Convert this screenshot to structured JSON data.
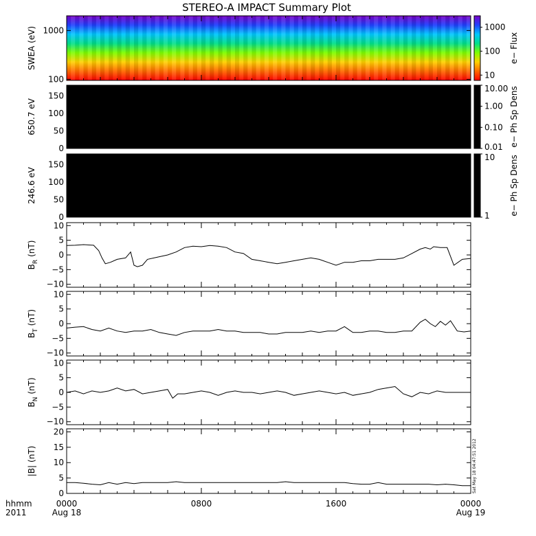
{
  "title": "STEREO-A IMPACT Summary Plot",
  "stamp": "Sat May 18 04:47:51 2012",
  "time_axis": {
    "corner_labels": [
      "hhmm",
      "2011"
    ],
    "ticks": [
      {
        "label": "0000",
        "sublabel": "Aug 18",
        "t": 0
      },
      {
        "label": "0800",
        "sublabel": "",
        "t": 8
      },
      {
        "label": "1600",
        "sublabel": "",
        "t": 16
      },
      {
        "label": "0000",
        "sublabel": "Aug 19",
        "t": 24
      }
    ]
  },
  "chart_data": [
    {
      "type": "heatmap",
      "ylabel": "SWEA (eV)",
      "yscale": "log",
      "ylim": [
        95,
        2000
      ],
      "yticks": [
        {
          "v": 100,
          "label": "100"
        },
        {
          "v": 1000,
          "label": "1000"
        }
      ],
      "colorbar": {
        "label": "e− Flux",
        "scale": "log",
        "range": [
          6,
          3000
        ],
        "ticks": [
          {
            "v": 10,
            "label": "10"
          },
          {
            "v": 100,
            "label": "100"
          },
          {
            "v": 1000,
            "label": "1000"
          }
        ]
      },
      "colors": [
        "#ff0000",
        "#ff6a00",
        "#ffd200",
        "#7fff00",
        "#00e08a",
        "#00c8ff",
        "#2040ff",
        "#7a00c8"
      ]
    },
    {
      "type": "heatmap",
      "ylabel": "650.7 eV",
      "ylim": [
        0,
        180
      ],
      "yticks": [
        {
          "v": 0,
          "label": "0"
        },
        {
          "v": 50,
          "label": "50"
        },
        {
          "v": 100,
          "label": "100"
        },
        {
          "v": 150,
          "label": "150"
        }
      ],
      "fill": "#000000",
      "colorbar": {
        "label": "e− Ph Sp Dens",
        "scale": "log",
        "range": [
          0.01,
          10
        ],
        "ticks": [
          {
            "v": 0.01,
            "label": "0.01"
          },
          {
            "v": 0.1,
            "label": "0.10"
          },
          {
            "v": 1,
            "label": "1.00"
          },
          {
            "v": 10,
            "label": "10.00"
          }
        ]
      }
    },
    {
      "type": "heatmap",
      "ylabel": "246.6 eV",
      "ylim": [
        0,
        180
      ],
      "yticks": [
        {
          "v": 0,
          "label": "0"
        },
        {
          "v": 50,
          "label": "50"
        },
        {
          "v": 100,
          "label": "100"
        },
        {
          "v": 150,
          "label": "150"
        }
      ],
      "fill": "#000000",
      "colorbar": {
        "label": "e− Ph Sp Dens",
        "scale": "log",
        "range": [
          1,
          10
        ],
        "ticks": [
          {
            "v": 1,
            "label": "1"
          },
          {
            "v": 10,
            "label": "10"
          }
        ]
      }
    },
    {
      "type": "line",
      "ylabel": "B",
      "ylabel_sub": "R",
      "ylabel_unit": "(nT)",
      "ylim": [
        -11,
        11
      ],
      "yticks": [
        {
          "v": -10,
          "label": "−10"
        },
        {
          "v": -5,
          "label": "−5"
        },
        {
          "v": 0,
          "label": "0"
        },
        {
          "v": 5,
          "label": "5"
        },
        {
          "v": 10,
          "label": "10"
        }
      ],
      "x": [
        0,
        0.5,
        1.0,
        1.6,
        1.9,
        2.1,
        2.3,
        2.6,
        3.0,
        3.5,
        3.8,
        4.0,
        4.2,
        4.5,
        4.8,
        5.2,
        5.6,
        6.0,
        6.5,
        7.0,
        7.5,
        8.0,
        8.5,
        9.0,
        9.5,
        10.0,
        10.5,
        11.0,
        11.5,
        12.0,
        12.5,
        13.0,
        13.5,
        14.0,
        14.5,
        15.0,
        15.5,
        16.0,
        16.5,
        17.0,
        17.5,
        18.0,
        18.5,
        19.0,
        19.5,
        20.0,
        20.5,
        21.0,
        21.3,
        21.6,
        21.8,
        22.2,
        22.6,
        23.0,
        23.5,
        24.0
      ],
      "y": [
        3.2,
        3.3,
        3.5,
        3.3,
        1.5,
        -1.0,
        -3.0,
        -2.5,
        -1.5,
        -1.0,
        1.0,
        -3.5,
        -4.0,
        -3.5,
        -1.5,
        -1.0,
        -0.5,
        0,
        1.0,
        2.5,
        3.0,
        2.8,
        3.2,
        3.0,
        2.5,
        1.0,
        0.5,
        -1.5,
        -2.0,
        -2.5,
        -3.0,
        -2.5,
        -2.0,
        -1.5,
        -1.0,
        -1.5,
        -2.5,
        -3.5,
        -2.5,
        -2.5,
        -2.0,
        -2.0,
        -1.5,
        -1.5,
        -1.5,
        -1.0,
        0.5,
        2.0,
        2.5,
        2.0,
        2.8,
        2.5,
        2.5,
        -3.5,
        -1.5,
        -1.2
      ]
    },
    {
      "type": "line",
      "ylabel": "B",
      "ylabel_sub": "T",
      "ylabel_unit": "(nT)",
      "ylim": [
        -11,
        11
      ],
      "yticks": [
        {
          "v": -10,
          "label": "−10"
        },
        {
          "v": -5,
          "label": "−5"
        },
        {
          "v": 0,
          "label": "0"
        },
        {
          "v": 5,
          "label": "5"
        },
        {
          "v": 10,
          "label": "10"
        }
      ],
      "x": [
        0,
        0.5,
        1.0,
        1.5,
        2.0,
        2.5,
        3.0,
        3.5,
        4.0,
        4.5,
        5.0,
        5.5,
        6.0,
        6.5,
        7.0,
        7.5,
        8.0,
        8.5,
        9.0,
        9.5,
        10.0,
        10.5,
        11.0,
        11.5,
        12.0,
        12.5,
        13.0,
        13.5,
        14.0,
        14.5,
        15.0,
        15.5,
        16.0,
        16.5,
        17.0,
        17.5,
        18.0,
        18.5,
        19.0,
        19.5,
        20.0,
        20.5,
        21.0,
        21.3,
        21.6,
        21.9,
        22.2,
        22.5,
        22.8,
        23.2,
        23.6,
        24.0
      ],
      "y": [
        -1.5,
        -1.2,
        -1.0,
        -2.0,
        -2.5,
        -1.5,
        -2.5,
        -3.0,
        -2.5,
        -2.5,
        -2.0,
        -3.0,
        -3.5,
        -4.0,
        -3.0,
        -2.5,
        -2.5,
        -2.5,
        -2.0,
        -2.5,
        -2.5,
        -3.0,
        -3.0,
        -3.0,
        -3.5,
        -3.5,
        -3.0,
        -3.0,
        -3.0,
        -2.5,
        -3.0,
        -2.5,
        -2.5,
        -1.0,
        -3.0,
        -3.0,
        -2.5,
        -2.5,
        -3.0,
        -3.0,
        -2.5,
        -2.5,
        0.5,
        1.5,
        0.0,
        -1.0,
        0.8,
        -0.5,
        1.0,
        -2.5,
        -2.8,
        -2.5
      ]
    },
    {
      "type": "line",
      "ylabel": "B",
      "ylabel_sub": "N",
      "ylabel_unit": "(nT)",
      "ylim": [
        -11,
        11
      ],
      "yticks": [
        {
          "v": -10,
          "label": "−10"
        },
        {
          "v": -5,
          "label": "−5"
        },
        {
          "v": 0,
          "label": "0"
        },
        {
          "v": 5,
          "label": "5"
        },
        {
          "v": 10,
          "label": "10"
        }
      ],
      "x": [
        0,
        0.5,
        1.0,
        1.5,
        2.0,
        2.5,
        3.0,
        3.5,
        4.0,
        4.5,
        5.0,
        5.5,
        6.0,
        6.3,
        6.6,
        7.0,
        7.5,
        8.0,
        8.5,
        9.0,
        9.5,
        10.0,
        10.5,
        11.0,
        11.5,
        12.0,
        12.5,
        13.0,
        13.5,
        14.0,
        14.5,
        15.0,
        15.5,
        16.0,
        16.5,
        17.0,
        17.5,
        18.0,
        18.5,
        19.0,
        19.5,
        20.0,
        20.5,
        21.0,
        21.5,
        22.0,
        22.5,
        23.0,
        23.5,
        24.0
      ],
      "y": [
        0.0,
        0.5,
        -0.5,
        0.5,
        0.0,
        0.5,
        1.5,
        0.5,
        1.0,
        -0.5,
        0.0,
        0.5,
        1.0,
        -2.0,
        -0.5,
        -0.5,
        0.0,
        0.5,
        0.0,
        -1.0,
        0.0,
        0.5,
        0.0,
        0.0,
        -0.5,
        0.0,
        0.5,
        0.0,
        -1.0,
        -0.5,
        0.0,
        0.5,
        0.0,
        -0.5,
        0.0,
        -1.0,
        -0.5,
        0.0,
        1.0,
        1.5,
        2.0,
        -0.5,
        -1.5,
        0.0,
        -0.5,
        0.5,
        0.0,
        0.0,
        0.0,
        0.0
      ]
    },
    {
      "type": "line",
      "ylabel": "|B|",
      "ylabel_sub": "",
      "ylabel_unit": "(nT)",
      "ylim": [
        0,
        21
      ],
      "yticks": [
        {
          "v": 0,
          "label": "0"
        },
        {
          "v": 5,
          "label": "5"
        },
        {
          "v": 10,
          "label": "10"
        },
        {
          "v": 15,
          "label": "15"
        },
        {
          "v": 20,
          "label": "20"
        }
      ],
      "x": [
        0,
        0.5,
        1.0,
        1.5,
        2.0,
        2.5,
        3.0,
        3.5,
        4.0,
        4.5,
        5.0,
        5.5,
        6.0,
        6.5,
        7.0,
        7.5,
        8.0,
        8.5,
        9.0,
        9.5,
        10.0,
        10.5,
        11.0,
        11.5,
        12.0,
        12.5,
        13.0,
        13.5,
        14.0,
        14.5,
        15.0,
        15.5,
        16.0,
        16.5,
        17.0,
        17.5,
        18.0,
        18.5,
        19.0,
        19.5,
        20.0,
        20.5,
        21.0,
        21.5,
        22.0,
        22.5,
        23.0,
        23.5,
        24.0
      ],
      "y": [
        3.5,
        3.5,
        3.3,
        3.0,
        2.8,
        3.5,
        3.0,
        3.5,
        3.2,
        3.5,
        3.5,
        3.5,
        3.5,
        3.8,
        3.5,
        3.5,
        3.5,
        3.5,
        3.5,
        3.5,
        3.5,
        3.5,
        3.5,
        3.5,
        3.5,
        3.5,
        3.8,
        3.5,
        3.5,
        3.5,
        3.5,
        3.5,
        3.5,
        3.5,
        3.2,
        3.0,
        3.0,
        3.5,
        3.0,
        3.0,
        3.0,
        3.0,
        3.0,
        3.0,
        2.8,
        3.0,
        2.8,
        2.5,
        2.5
      ]
    }
  ]
}
